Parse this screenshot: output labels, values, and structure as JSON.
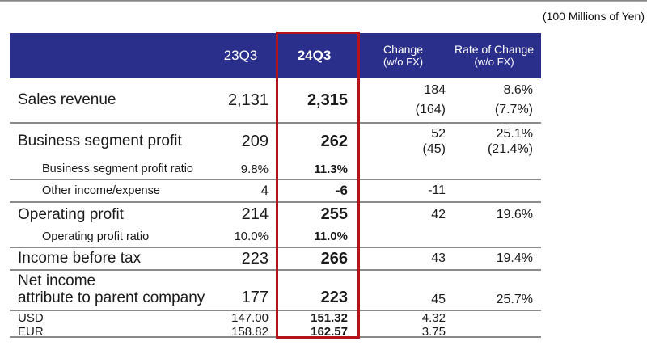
{
  "unit_note": "(100 Millions of Yen)",
  "colors": {
    "header_bg": "#2b2f8c",
    "header_text": "#ffffff",
    "highlight_border": "#b5121b",
    "separator": "#8a8a8a",
    "text": "#1a1a1a"
  },
  "table": {
    "header": {
      "col_23q3": "23Q3",
      "col_24q3": "24Q3",
      "change_line1": "Change",
      "change_line2": "(w/o FX)",
      "rate_line1": "Rate of Change",
      "rate_line2": "(w/o FX)"
    },
    "rows": [
      {
        "label": "Sales revenue",
        "q23": "2,131",
        "q24": "2,315",
        "change": [
          "184",
          "(164)"
        ],
        "rate": [
          "8.6%",
          "(7.7%)"
        ]
      },
      {
        "label": "Business segment profit",
        "q23": "209",
        "q24": "262",
        "change": [
          "52",
          "(45)"
        ],
        "rate": [
          "25.1%",
          "(21.4%)"
        ]
      },
      {
        "label": "Business segment profit ratio",
        "q23": "9.8%",
        "q24": "11.3%",
        "change": "",
        "rate": ""
      },
      {
        "label": "Other income/expense",
        "q23": "4",
        "q24": "-6",
        "change": "-11",
        "rate": ""
      },
      {
        "label": "Operating profit",
        "q23": "214",
        "q24": "255",
        "change": "42",
        "rate": "19.6%"
      },
      {
        "label": "Operating profit ratio",
        "q23": "10.0%",
        "q24": "11.0%",
        "change": "",
        "rate": ""
      },
      {
        "label": "Income before tax",
        "q23": "223",
        "q24": "266",
        "change": "43",
        "rate": "19.4%"
      },
      {
        "label_line1": "Net income",
        "label_line2": "attribute to parent company",
        "q23": "177",
        "q24": "223",
        "change": "45",
        "rate": "25.7%"
      },
      {
        "label": "USD",
        "q23": "147.00",
        "q24": "151.32",
        "change": "4.32",
        "rate": ""
      },
      {
        "label": "EUR",
        "q23": "158.82",
        "q24": "162.57",
        "change": "3.75",
        "rate": ""
      }
    ]
  }
}
